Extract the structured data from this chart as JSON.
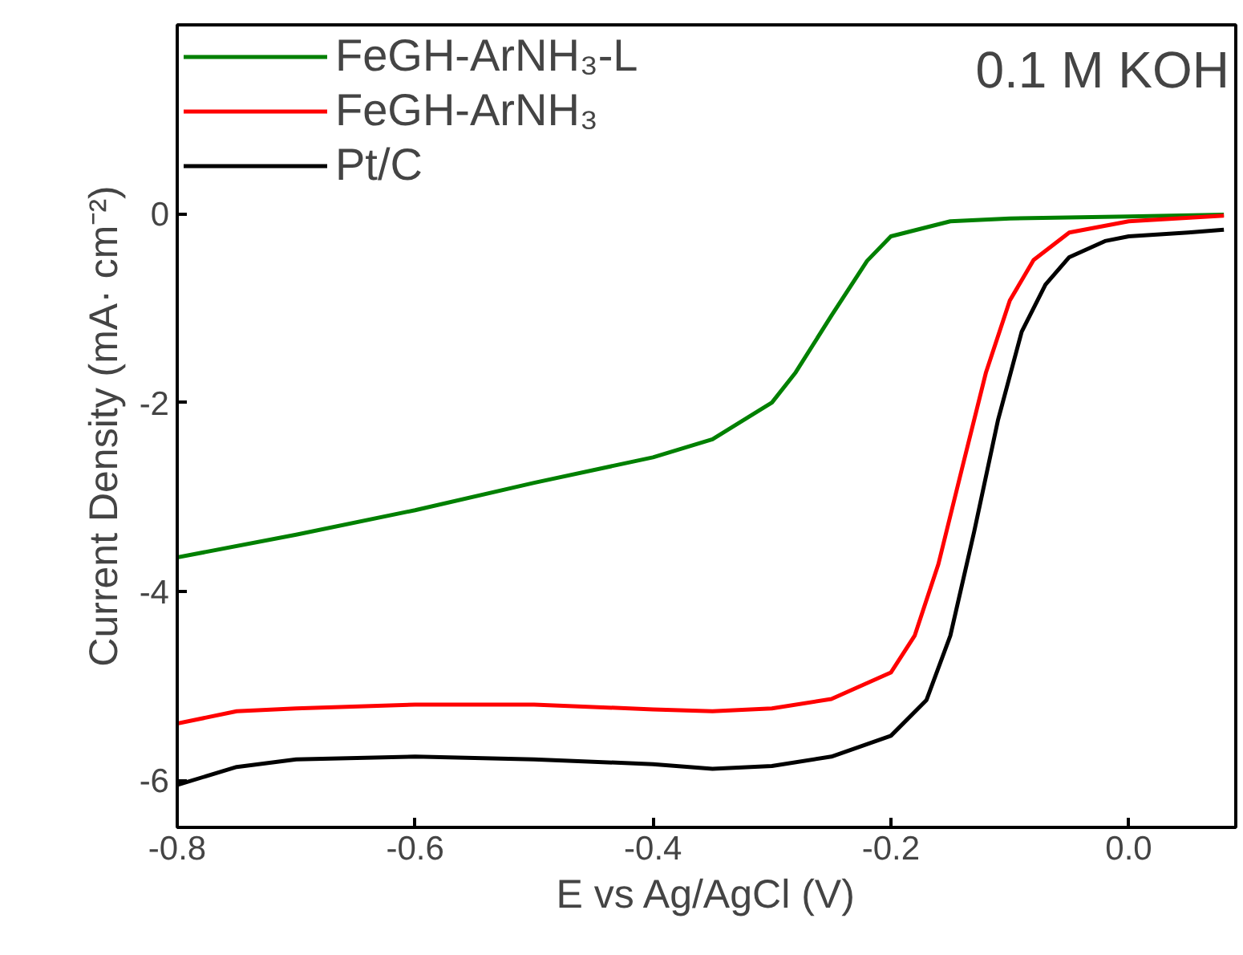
{
  "chart_data": {
    "type": "line",
    "xlabel": "E vs Ag/AgCl (V)",
    "ylabel": "Current Density (mA· cm⁻²)",
    "xlim": [
      -0.8,
      0.09
    ],
    "ylim": [
      -6.5,
      2
    ],
    "xticks": [
      -0.8,
      -0.6,
      -0.4,
      -0.2,
      {
        "value": 0.0,
        "label": "0.0"
      }
    ],
    "yticks": [
      -6,
      -4,
      -2,
      0
    ],
    "grid": false,
    "legend": "top left",
    "marker": "none",
    "line_style": "solid",
    "annotations": [
      "0.1 M KOH"
    ],
    "series": [
      {
        "name": "FeGH-ArNH₃-L",
        "color": "#008000",
        "x": [
          -0.8,
          -0.7,
          -0.6,
          -0.5,
          -0.4,
          -0.35,
          -0.3,
          -0.28,
          -0.25,
          -0.22,
          -0.2,
          -0.15,
          -0.1,
          0.0,
          0.08
        ],
        "values": [
          -3.64,
          -3.4,
          -3.14,
          -2.85,
          -2.58,
          -2.39,
          -2.0,
          -1.68,
          -1.08,
          -0.5,
          -0.24,
          -0.08,
          -0.05,
          -0.03,
          -0.01
        ]
      },
      {
        "name": "FeGH-ArNH₃",
        "color": "#ff0000",
        "x": [
          -0.8,
          -0.75,
          -0.7,
          -0.6,
          -0.5,
          -0.4,
          -0.35,
          -0.3,
          -0.25,
          -0.2,
          -0.18,
          -0.16,
          -0.14,
          -0.12,
          -0.1,
          -0.08,
          -0.05,
          0.0,
          0.08
        ],
        "values": [
          -5.4,
          -5.27,
          -5.24,
          -5.2,
          -5.2,
          -5.25,
          -5.27,
          -5.24,
          -5.14,
          -4.86,
          -4.47,
          -3.71,
          -2.69,
          -1.68,
          -0.92,
          -0.49,
          -0.2,
          -0.08,
          -0.02
        ]
      },
      {
        "name": "Pt/C",
        "color": "#000000",
        "x": [
          -0.8,
          -0.75,
          -0.7,
          -0.6,
          -0.5,
          -0.4,
          -0.35,
          -0.3,
          -0.25,
          -0.2,
          -0.17,
          -0.15,
          -0.13,
          -0.11,
          -0.09,
          -0.07,
          -0.05,
          -0.02,
          0.0,
          0.05,
          0.08
        ],
        "values": [
          -6.05,
          -5.86,
          -5.78,
          -5.75,
          -5.78,
          -5.83,
          -5.88,
          -5.85,
          -5.75,
          -5.53,
          -5.15,
          -4.47,
          -3.37,
          -2.19,
          -1.25,
          -0.75,
          -0.46,
          -0.29,
          -0.24,
          -0.2,
          -0.17
        ]
      }
    ]
  }
}
